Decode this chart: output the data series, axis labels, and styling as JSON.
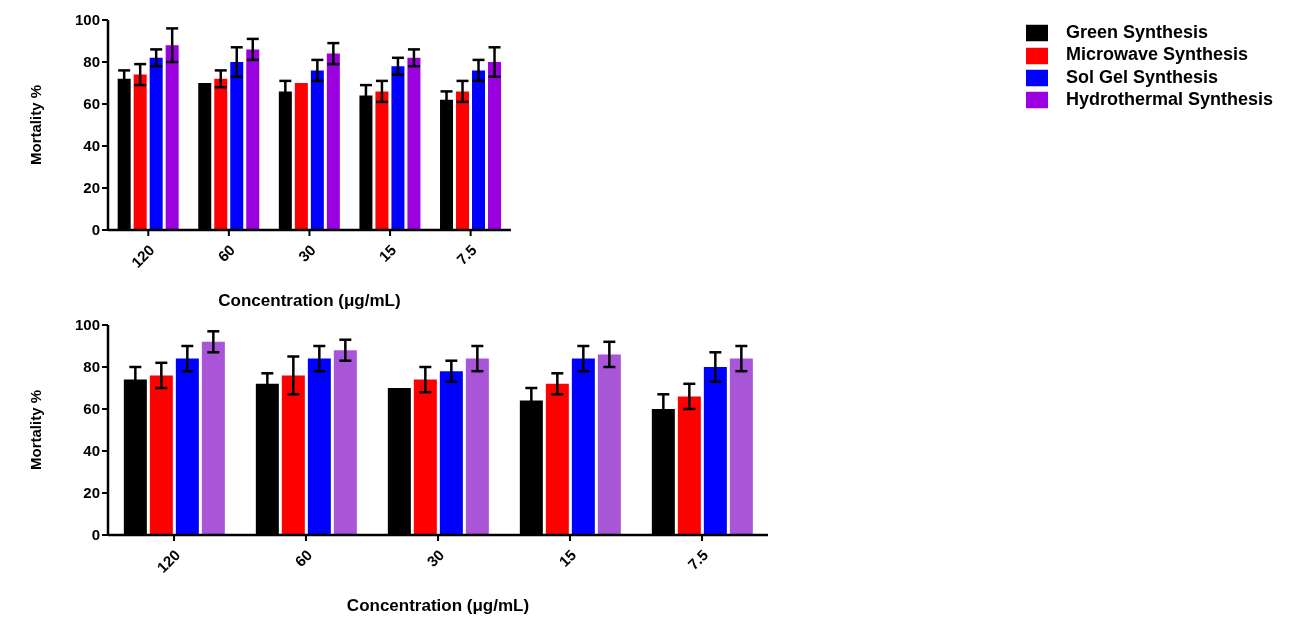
{
  "chart_data": [
    {
      "type": "bar",
      "xlabel": "Concentration (μg/mL)",
      "ylabel": "Mortality %",
      "categories": [
        "120",
        "60",
        "30",
        "15",
        "7.5"
      ],
      "ylim": [
        0,
        100
      ],
      "yticks": [
        0,
        20,
        40,
        60,
        80,
        100
      ],
      "grid": false,
      "legend": "right",
      "series": [
        {
          "name": "Green Synthesis",
          "color": "#000000",
          "values": [
            72,
            70,
            66,
            64,
            62
          ],
          "errors": [
            4,
            null,
            5,
            5,
            4
          ]
        },
        {
          "name": "Microwave Synthesis",
          "color": "#ff0000",
          "values": [
            74,
            72,
            70,
            66,
            66
          ],
          "errors": [
            5,
            4,
            null,
            5,
            5
          ]
        },
        {
          "name": "Sol Gel Synthesis",
          "color": "#0000ff",
          "values": [
            82,
            80,
            76,
            78,
            76
          ],
          "errors": [
            4,
            7,
            5,
            4,
            5
          ]
        },
        {
          "name": "Hydrothermal Synthesis",
          "color": "#9b00e0",
          "values": [
            88,
            86,
            84,
            82,
            80
          ],
          "errors": [
            8,
            5,
            5,
            4,
            7
          ]
        }
      ]
    },
    {
      "type": "bar",
      "xlabel": "Concentration (μg/mL)",
      "ylabel": "Mortality %",
      "categories": [
        "120",
        "60",
        "30",
        "15",
        "7.5"
      ],
      "ylim": [
        0,
        100
      ],
      "yticks": [
        0,
        20,
        40,
        60,
        80,
        100
      ],
      "grid": false,
      "legend": false,
      "series": [
        {
          "color": "#000000",
          "values": [
            74,
            72,
            70,
            64,
            60
          ],
          "errors": [
            6,
            5,
            null,
            6,
            7
          ]
        },
        {
          "color": "#ff0000",
          "values": [
            76,
            76,
            74,
            72,
            66
          ],
          "errors": [
            6,
            9,
            6,
            5,
            6
          ]
        },
        {
          "color": "#0000ff",
          "values": [
            84,
            84,
            78,
            84,
            80
          ],
          "errors": [
            6,
            6,
            5,
            6,
            7
          ]
        },
        {
          "color": "#a855d8",
          "values": [
            92,
            88,
            84,
            86,
            84
          ],
          "errors": [
            5,
            5,
            6,
            6,
            6
          ]
        }
      ]
    }
  ]
}
